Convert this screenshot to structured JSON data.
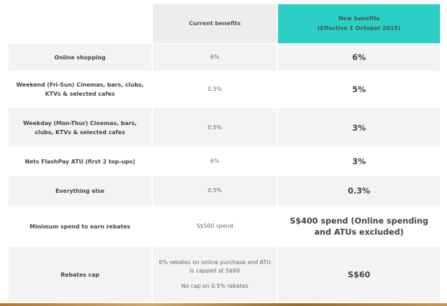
{
  "header": {
    "current": "Current benefits",
    "new_title": "New benefits",
    "new_sub": "(Effective 1 October 2015)"
  },
  "rows": [
    {
      "label": "Online shopping",
      "current": "6%",
      "new": "6%"
    },
    {
      "label": "Weekend (Fri-Sun) Cinemas, bars, clubs, KTVs & selected cafes",
      "current": "0.5%",
      "new": "5%"
    },
    {
      "label": "Weekday (Mon-Thur) Cinemas, bars, clubs, KTVs & selected cafes",
      "current": "0.5%",
      "new": "3%"
    },
    {
      "label": "Nets FlashPay ATU (first 2 top-ups)",
      "current": "6%",
      "new": "3%"
    },
    {
      "label": "Everything else",
      "current": "0.5%",
      "new": "0.3%"
    },
    {
      "label": "Minimum spend to earn rebates",
      "current": "S$500 spend",
      "new": "S$400 spend (Online spending and ATUs excluded)"
    },
    {
      "label": "Rebates cap",
      "current": "6% rebates on online purchase and ATU is capped at S$60",
      "current_note": "No cap on 0.5% rebates",
      "new": "S$60"
    }
  ]
}
